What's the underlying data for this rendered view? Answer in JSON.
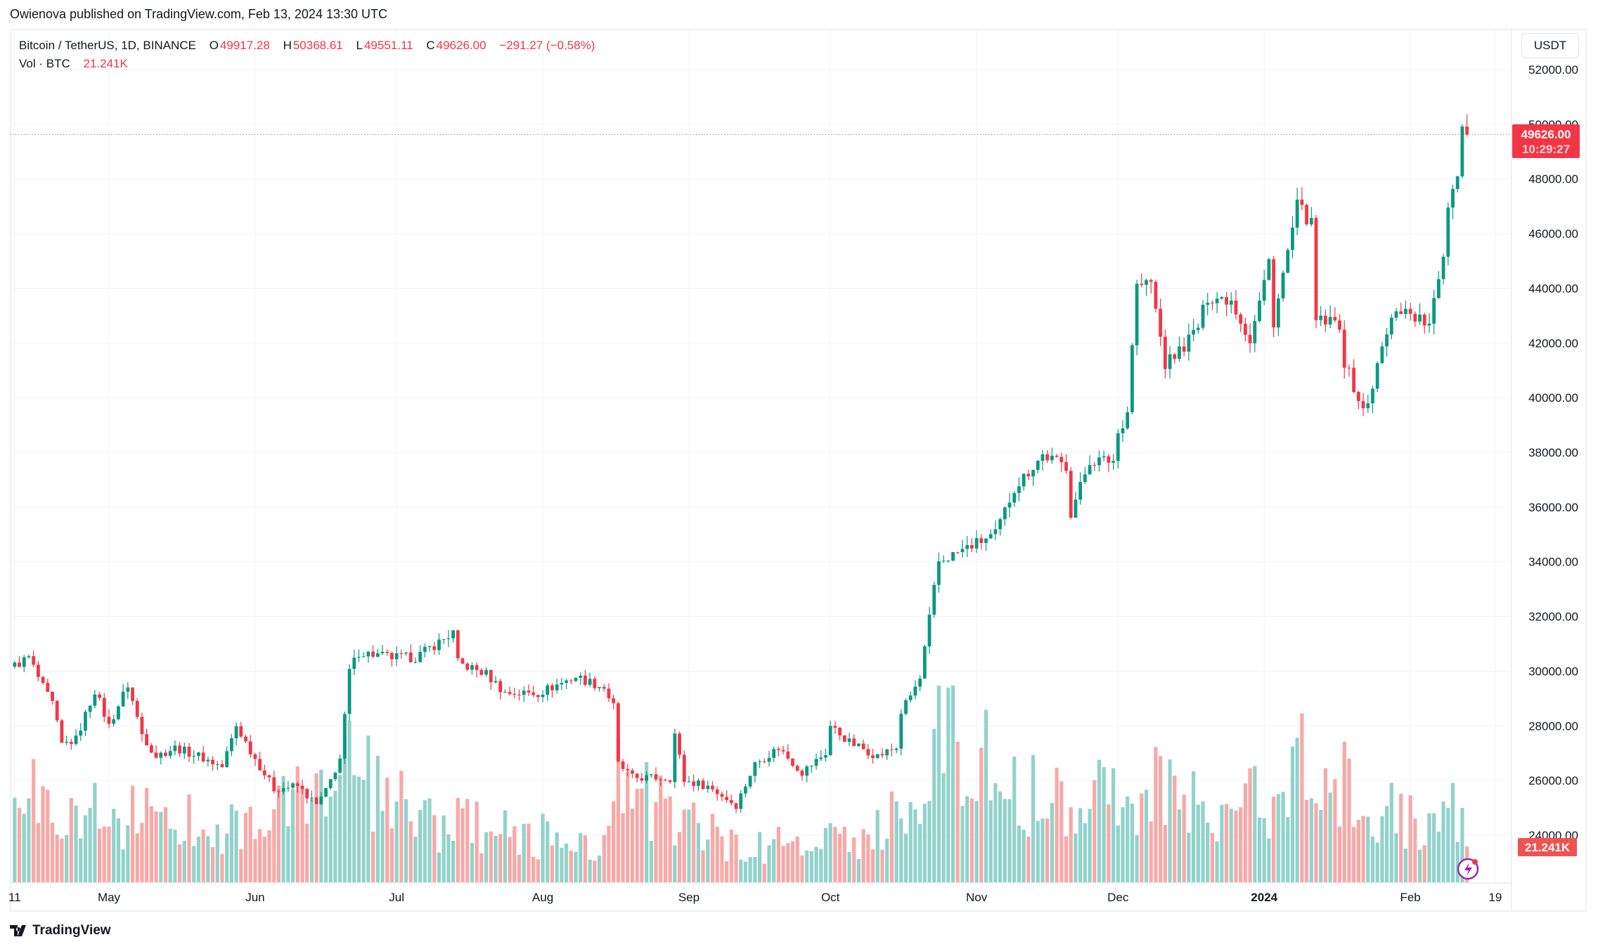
{
  "header": {
    "published": "Owienova published on TradingView.com, Feb 13, 2024 13:30 UTC"
  },
  "legend": {
    "symbol": "Bitcoin / TetherUS, 1D, BINANCE",
    "o_label": "O",
    "o": "49917.28",
    "h_label": "H",
    "h": "50368.61",
    "l_label": "L",
    "l": "49551.11",
    "c_label": "C",
    "c": "49626.00",
    "change": "−291.27 (−0.58%)",
    "vol_label": "Vol · BTC",
    "vol": "21.241K"
  },
  "currency_button": "USDT",
  "last_price_label": {
    "price": "49626.00",
    "countdown": "10:29:27"
  },
  "volume_label": "21.241K",
  "footer": {
    "brand": "TradingView"
  },
  "colors": {
    "up": "#089981",
    "down": "#f23645",
    "vol_up": "#92d2cb",
    "vol_down": "#f7a9a7",
    "grid": "#f0f3fa"
  },
  "chart_data": {
    "type": "candlestick",
    "title": "Bitcoin / TetherUS, 1D, BINANCE",
    "ylim": [
      22280,
      53490
    ],
    "y_ticks": [
      "52000.00",
      "50000.00",
      "48000.00",
      "46000.00",
      "44000.00",
      "42000.00",
      "40000.00",
      "38000.00",
      "36000.00",
      "34000.00",
      "32000.00",
      "30000.00",
      "28000.00",
      "26000.00",
      "24000.00"
    ],
    "x_ticks": [
      {
        "label": "11",
        "date": "2023-04-11"
      },
      {
        "label": "May",
        "date": "2023-05-01"
      },
      {
        "label": "Jun",
        "date": "2023-06-01"
      },
      {
        "label": "Jul",
        "date": "2023-07-01"
      },
      {
        "label": "Aug",
        "date": "2023-08-01"
      },
      {
        "label": "Sep",
        "date": "2023-09-01"
      },
      {
        "label": "Oct",
        "date": "2023-10-01"
      },
      {
        "label": "Nov",
        "date": "2023-11-01"
      },
      {
        "label": "Dec",
        "date": "2023-12-01"
      },
      {
        "label": "2024",
        "date": "2024-01-01"
      },
      {
        "label": "Feb",
        "date": "2024-02-01"
      },
      {
        "label": "19",
        "date": "2024-02-19"
      }
    ],
    "date_range": [
      "2023-04-11",
      "2024-02-13"
    ],
    "close_keypoints": [
      [
        "2023-04-11",
        30200
      ],
      [
        "2023-04-13",
        30400
      ],
      [
        "2023-04-14",
        30500
      ],
      [
        "2023-04-17",
        29400
      ],
      [
        "2023-04-19",
        28800
      ],
      [
        "2023-04-21",
        27300
      ],
      [
        "2023-04-24",
        27500
      ],
      [
        "2023-04-26",
        28400
      ],
      [
        "2023-04-28",
        29300
      ],
      [
        "2023-05-01",
        28000
      ],
      [
        "2023-05-05",
        29500
      ],
      [
        "2023-05-08",
        27700
      ],
      [
        "2023-05-11",
        26900
      ],
      [
        "2023-05-15",
        27200
      ],
      [
        "2023-05-20",
        26900
      ],
      [
        "2023-05-25",
        26500
      ],
      [
        "2023-05-28",
        28000
      ],
      [
        "2023-06-01",
        26800
      ],
      [
        "2023-06-05",
        25700
      ],
      [
        "2023-06-10",
        25800
      ],
      [
        "2023-06-14",
        25100
      ],
      [
        "2023-06-16",
        25600
      ],
      [
        "2023-06-19",
        26800
      ],
      [
        "2023-06-20",
        28300
      ],
      [
        "2023-06-21",
        30000
      ],
      [
        "2023-06-23",
        30700
      ],
      [
        "2023-06-30",
        30500
      ],
      [
        "2023-07-05",
        30500
      ],
      [
        "2023-07-13",
        31400
      ],
      [
        "2023-07-14",
        30300
      ],
      [
        "2023-07-20",
        29900
      ],
      [
        "2023-07-24",
        29200
      ],
      [
        "2023-07-31",
        29200
      ],
      [
        "2023-08-08",
        29800
      ],
      [
        "2023-08-14",
        29400
      ],
      [
        "2023-08-16",
        28700
      ],
      [
        "2023-08-17",
        26600
      ],
      [
        "2023-08-20",
        26100
      ],
      [
        "2023-08-28",
        26100
      ],
      [
        "2023-08-29",
        27700
      ],
      [
        "2023-08-31",
        26000
      ],
      [
        "2023-09-05",
        25800
      ],
      [
        "2023-09-11",
        25100
      ],
      [
        "2023-09-15",
        26600
      ],
      [
        "2023-09-20",
        27200
      ],
      [
        "2023-09-25",
        26300
      ],
      [
        "2023-09-30",
        27000
      ],
      [
        "2023-10-01",
        28000
      ],
      [
        "2023-10-05",
        27400
      ],
      [
        "2023-10-11",
        26900
      ],
      [
        "2023-10-15",
        27200
      ],
      [
        "2023-10-16",
        28500
      ],
      [
        "2023-10-20",
        29700
      ],
      [
        "2023-10-23",
        33000
      ],
      [
        "2023-10-24",
        34000
      ],
      [
        "2023-10-31",
        34600
      ],
      [
        "2023-11-05",
        35000
      ],
      [
        "2023-11-09",
        36700
      ],
      [
        "2023-11-15",
        37900
      ],
      [
        "2023-11-20",
        37500
      ],
      [
        "2023-11-21",
        35800
      ],
      [
        "2023-11-25",
        37700
      ],
      [
        "2023-11-30",
        37700
      ],
      [
        "2023-12-01",
        38700
      ],
      [
        "2023-12-03",
        39500
      ],
      [
        "2023-12-04",
        42000
      ],
      [
        "2023-12-05",
        44100
      ],
      [
        "2023-12-08",
        44200
      ],
      [
        "2023-12-11",
        41200
      ],
      [
        "2023-12-15",
        41900
      ],
      [
        "2023-12-18",
        42600
      ],
      [
        "2023-12-20",
        43700
      ],
      [
        "2023-12-25",
        43600
      ],
      [
        "2023-12-29",
        42100
      ],
      [
        "2024-01-01",
        44200
      ],
      [
        "2024-01-02",
        45000
      ],
      [
        "2024-01-03",
        42800
      ],
      [
        "2024-01-08",
        47000
      ],
      [
        "2024-01-10",
        46600
      ],
      [
        "2024-01-11",
        46300
      ],
      [
        "2024-01-12",
        42800
      ],
      [
        "2024-01-17",
        42700
      ],
      [
        "2024-01-18",
        41300
      ],
      [
        "2024-01-22",
        39500
      ],
      [
        "2024-01-23",
        39800
      ],
      [
        "2024-01-26",
        41800
      ],
      [
        "2024-01-29",
        43300
      ],
      [
        "2024-02-01",
        43100
      ],
      [
        "2024-02-05",
        42600
      ],
      [
        "2024-02-07",
        44300
      ],
      [
        "2024-02-08",
        45300
      ],
      [
        "2024-02-09",
        47100
      ],
      [
        "2024-02-11",
        48300
      ],
      [
        "2024-02-12",
        49917.28
      ],
      [
        "2024-02-13",
        49626
      ]
    ],
    "last_candle": {
      "open": 49917.28,
      "high": 50368.61,
      "low": 49551.11,
      "close": 49626.0,
      "volume_k": 21.241
    },
    "volume_keypoints_k": [
      [
        "2023-04-11",
        55
      ],
      [
        "2023-04-25",
        45
      ],
      [
        "2023-05-10",
        40
      ],
      [
        "2023-06-01",
        35
      ],
      [
        "2023-06-20",
        70
      ],
      [
        "2023-07-05",
        40
      ],
      [
        "2023-07-25",
        30
      ],
      [
        "2023-08-15",
        25
      ],
      [
        "2023-08-17",
        60
      ],
      [
        "2023-09-10",
        22
      ],
      [
        "2023-10-05",
        25
      ],
      [
        "2023-10-20",
        50
      ],
      [
        "2023-10-24",
        105
      ],
      [
        "2023-11-10",
        55
      ],
      [
        "2023-12-05",
        60
      ],
      [
        "2023-12-25",
        40
      ],
      [
        "2024-01-11",
        75
      ],
      [
        "2024-01-20",
        55
      ],
      [
        "2024-02-05",
        30
      ],
      [
        "2024-02-12",
        45
      ],
      [
        "2024-02-13",
        21.241
      ]
    ]
  }
}
